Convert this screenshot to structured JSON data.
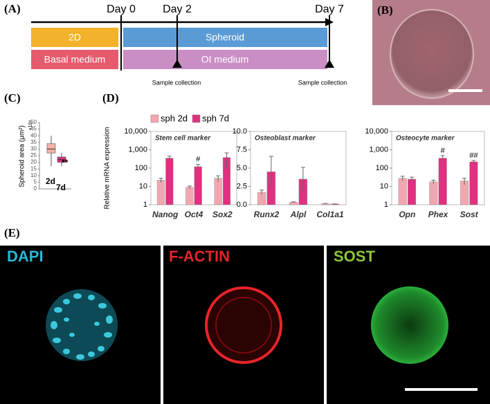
{
  "panels": {
    "a": "(A)",
    "b": "(B)",
    "c": "(C)",
    "d": "(D)",
    "e": "(E)"
  },
  "timeline": {
    "days": [
      "Day 0",
      "Day 2",
      "Day 7"
    ],
    "culture": [
      "2D",
      "Spheroid"
    ],
    "medium": [
      "Basal medium",
      "OI medium"
    ],
    "sample": [
      "Sample collection",
      "Sample collection"
    ]
  },
  "images": [
    "DAPI",
    "F-ACTIN",
    "SOST"
  ],
  "chart_data": [
    {
      "type": "box",
      "y_label": "Spheroid area (μm²)",
      "y_unit": "×10⁴",
      "categories": [
        "2d",
        "7d"
      ],
      "colors": [
        "#f2b3a6",
        "#e0307f"
      ],
      "boxes": [
        {
          "min": 17,
          "q1": 27,
          "median": 30,
          "q3": 34,
          "max": 40
        },
        {
          "min": 17,
          "q1": 20,
          "median": 22,
          "q3": 24,
          "max": 27
        }
      ],
      "annotation": "**",
      "ylim": [
        0,
        50
      ],
      "yticks": [
        0,
        5,
        10,
        15,
        20,
        25,
        30,
        35,
        40,
        45,
        50
      ]
    },
    {
      "type": "bar",
      "title": "Stem cell marker",
      "y_label": "Relative mRNA expression",
      "log": true,
      "categories": [
        "Nanog",
        "Oct4",
        "Sox2"
      ],
      "series": [
        {
          "name": "sph 2d",
          "color": "#f4a6b0",
          "values": [
            22,
            9,
            28
          ],
          "errors": [
            6,
            1.5,
            10
          ]
        },
        {
          "name": "sph 7d",
          "color": "#e0307f",
          "values": [
            350,
            120,
            380
          ],
          "errors": [
            100,
            40,
            300
          ],
          "labels": [
            null,
            "#",
            null
          ]
        }
      ],
      "ylim": [
        1,
        10000
      ],
      "yticks": [
        1,
        10,
        100,
        {
          "value": 1000,
          "label": "1,000"
        },
        {
          "value": 10000,
          "label": "10,000"
        }
      ]
    },
    {
      "type": "bar",
      "title": "Osteoblast marker",
      "log": false,
      "categories": [
        "Runx2",
        "Alpl",
        "Col1a1"
      ],
      "series": [
        {
          "color": "#f4a6b0",
          "values": [
            1.7,
            0.35,
            0.15
          ],
          "errors": [
            0.3,
            0.05,
            0.02
          ]
        },
        {
          "color": "#e0307f",
          "values": [
            4.5,
            3.5,
            0.1
          ],
          "errors": [
            2.1,
            1.6,
            0.02
          ]
        }
      ],
      "ylim": [
        0,
        10
      ],
      "yticks": [
        {
          "value": 0,
          "label": "0.0"
        },
        {
          "value": 2.5,
          "label": "2.5"
        },
        {
          "value": 5,
          "label": "5.0"
        },
        {
          "value": 7.5,
          "label": "7.5"
        },
        {
          "value": 10,
          "label": "10.0"
        }
      ]
    },
    {
      "type": "bar",
      "title": "Osteocyte marker",
      "log": true,
      "categories": [
        "Opn",
        "Phex",
        "Sost"
      ],
      "series": [
        {
          "color": "#f4a6b0",
          "values": [
            28,
            18,
            20
          ],
          "errors": [
            8,
            4,
            8
          ]
        },
        {
          "color": "#e0307f",
          "values": [
            25,
            350,
            220
          ],
          "errors": [
            7,
            130,
            40
          ],
          "labels": [
            null,
            "#",
            "##"
          ]
        }
      ],
      "ylim": [
        1,
        10000
      ],
      "yticks": [
        1,
        10,
        100,
        {
          "value": 1000,
          "label": "1,000"
        },
        {
          "value": 10000,
          "label": "10,000"
        }
      ]
    }
  ]
}
